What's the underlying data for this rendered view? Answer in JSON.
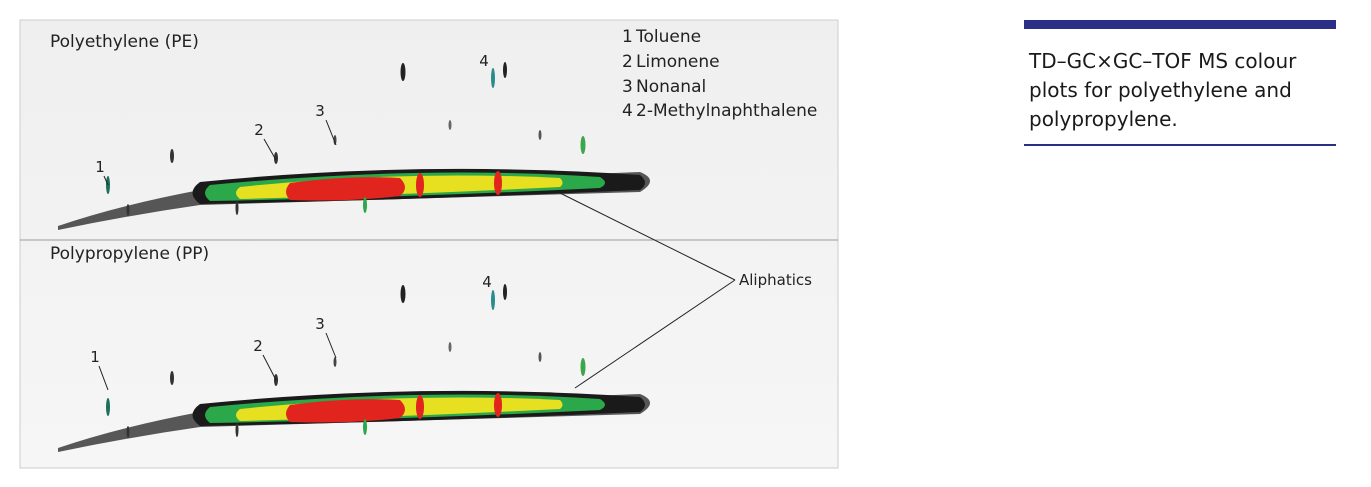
{
  "panels": [
    {
      "title": "Polyethylene (PE)",
      "peak_labels": [
        "1",
        "2",
        "3",
        "4"
      ]
    },
    {
      "title": "Polypropylene (PP)",
      "peak_labels": [
        "1",
        "2",
        "3",
        "4"
      ]
    }
  ],
  "legend": [
    {
      "number": "1",
      "name": "Toluene"
    },
    {
      "number": "2",
      "name": "Limonene"
    },
    {
      "number": "3",
      "name": "Nonanal"
    },
    {
      "number": "4",
      "name": "2-Methylnaphthalene"
    }
  ],
  "annotation": "Aliphatics",
  "caption": "TD–GC×GC–TOF MS colour plots for polyethylene and polypropylene."
}
